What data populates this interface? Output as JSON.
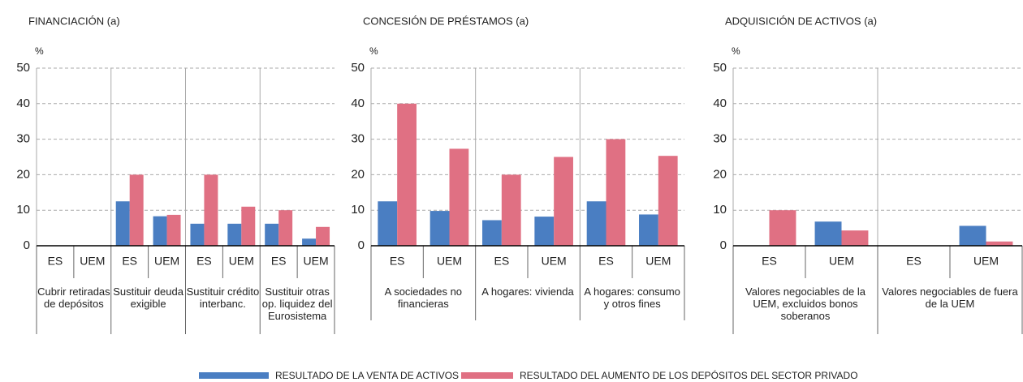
{
  "chart_data": [
    {
      "type": "bar",
      "title": "FINANCIACIÓN (a)",
      "unit": "%",
      "categories": [
        "ES",
        "UEM",
        "ES",
        "UEM",
        "ES",
        "UEM",
        "ES",
        "UEM"
      ],
      "groups": [
        "Cubrir retiradas de depósitos",
        "Sustituir deuda exigible",
        "Sustituir crédito interbanc.",
        "Sustituir otras op. liquidez del Eurosistema"
      ],
      "series": [
        {
          "values": [
            0,
            0,
            12.5,
            8.3,
            6.2,
            6.2,
            6.2,
            2
          ]
        },
        {
          "values": [
            0,
            0,
            20,
            8.7,
            20,
            11,
            10,
            5.3
          ]
        }
      ],
      "ylim": [
        0,
        50
      ],
      "yticks": [
        0,
        10,
        20,
        30,
        40,
        50
      ],
      "grid": true
    },
    {
      "type": "bar",
      "title": "CONCESIÓN DE PRÉSTAMOS (a)",
      "unit": "%",
      "categories": [
        "ES",
        "UEM",
        "ES",
        "UEM",
        "ES",
        "UEM"
      ],
      "groups": [
        "A sociedades no financieras",
        "A hogares: vivienda",
        "A hogares: consumo y otros fines"
      ],
      "series": [
        {
          "values": [
            12.5,
            9.8,
            7.2,
            8.2,
            12.5,
            8.8
          ]
        },
        {
          "values": [
            40,
            27.3,
            20,
            25,
            30,
            25.3
          ]
        }
      ],
      "ylim": [
        0,
        50
      ],
      "yticks": [
        0,
        10,
        20,
        30,
        40,
        50
      ],
      "grid": true
    },
    {
      "type": "bar",
      "title": "ADQUISICIÓN DE ACTIVOS (a)",
      "unit": "%",
      "categories": [
        "ES",
        "UEM",
        "ES",
        "UEM"
      ],
      "groups": [
        "Valores negociables de la UEM, excluidos bonos soberanos",
        "Valores negociables de fuera de la UEM"
      ],
      "series": [
        {
          "values": [
            0,
            6.8,
            0,
            5.6
          ]
        },
        {
          "values": [
            10,
            4.3,
            0,
            1.2
          ]
        }
      ],
      "ylim": [
        0,
        50
      ],
      "yticks": [
        0,
        10,
        20,
        30,
        40,
        50
      ],
      "grid": true
    }
  ],
  "legend": [
    {
      "name": "RESULTADO DE LA VENTA DE ACTIVOS",
      "color": "#4a7ec2"
    },
    {
      "name": "RESULTADO DEL AUMENTO DE LOS DEPÓSITOS DEL SECTOR PRIVADO",
      "color": "#e07083"
    }
  ]
}
